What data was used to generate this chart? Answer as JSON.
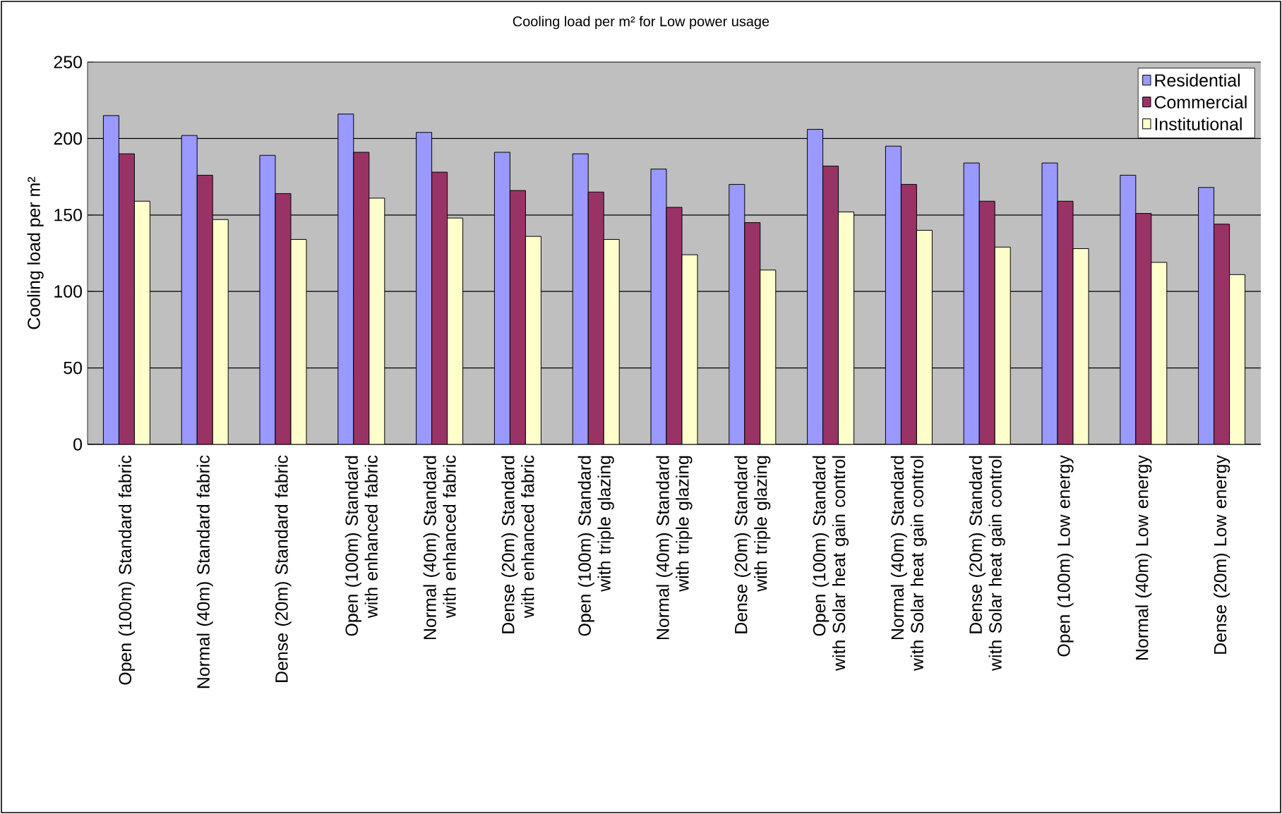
{
  "chart_data": {
    "type": "bar",
    "title": "Cooling load per m² for Low power usage",
    "ylabel": "Cooling load per m²",
    "categories": [
      "Open (100m) Standard fabric",
      "Normal (40m) Standard fabric",
      "Dense (20m) Standard fabric",
      "Open (100m) Standard with enhanced fabric",
      "Normal (40m) Standard with enhanced fabric",
      "Dense (20m) Standard with enhanced fabric",
      "Open (100m) Standard with triple glazing",
      "Normal (40m) Standard with triple glazing",
      "Dense (20m) Standard with triple glazing",
      "Open (100m) Standard with Solar heat gain control",
      "Normal (40m) Standard with Solar heat gain control",
      "Dense (20m) Standard with Solar heat gain control",
      "Open (100m) Low energy",
      "Normal (40m) Low energy",
      "Dense (20m) Low energy"
    ],
    "series": [
      {
        "name": "Residential",
        "color": "#9999ff",
        "values": [
          215,
          202,
          189,
          216,
          204,
          191,
          190,
          180,
          170,
          206,
          195,
          184,
          184,
          176,
          168
        ]
      },
      {
        "name": "Commercial",
        "color": "#993366",
        "values": [
          190,
          176,
          164,
          191,
          178,
          166,
          165,
          155,
          145,
          182,
          170,
          159,
          159,
          151,
          144
        ]
      },
      {
        "name": "Institutional",
        "color": "#ffffcc",
        "values": [
          159,
          147,
          134,
          161,
          148,
          136,
          134,
          124,
          114,
          152,
          140,
          129,
          128,
          119,
          111
        ]
      }
    ],
    "ylim": [
      0,
      250
    ],
    "yticks": [
      0,
      50,
      100,
      150,
      200,
      250
    ],
    "grid": "y",
    "legend": "top right"
  }
}
